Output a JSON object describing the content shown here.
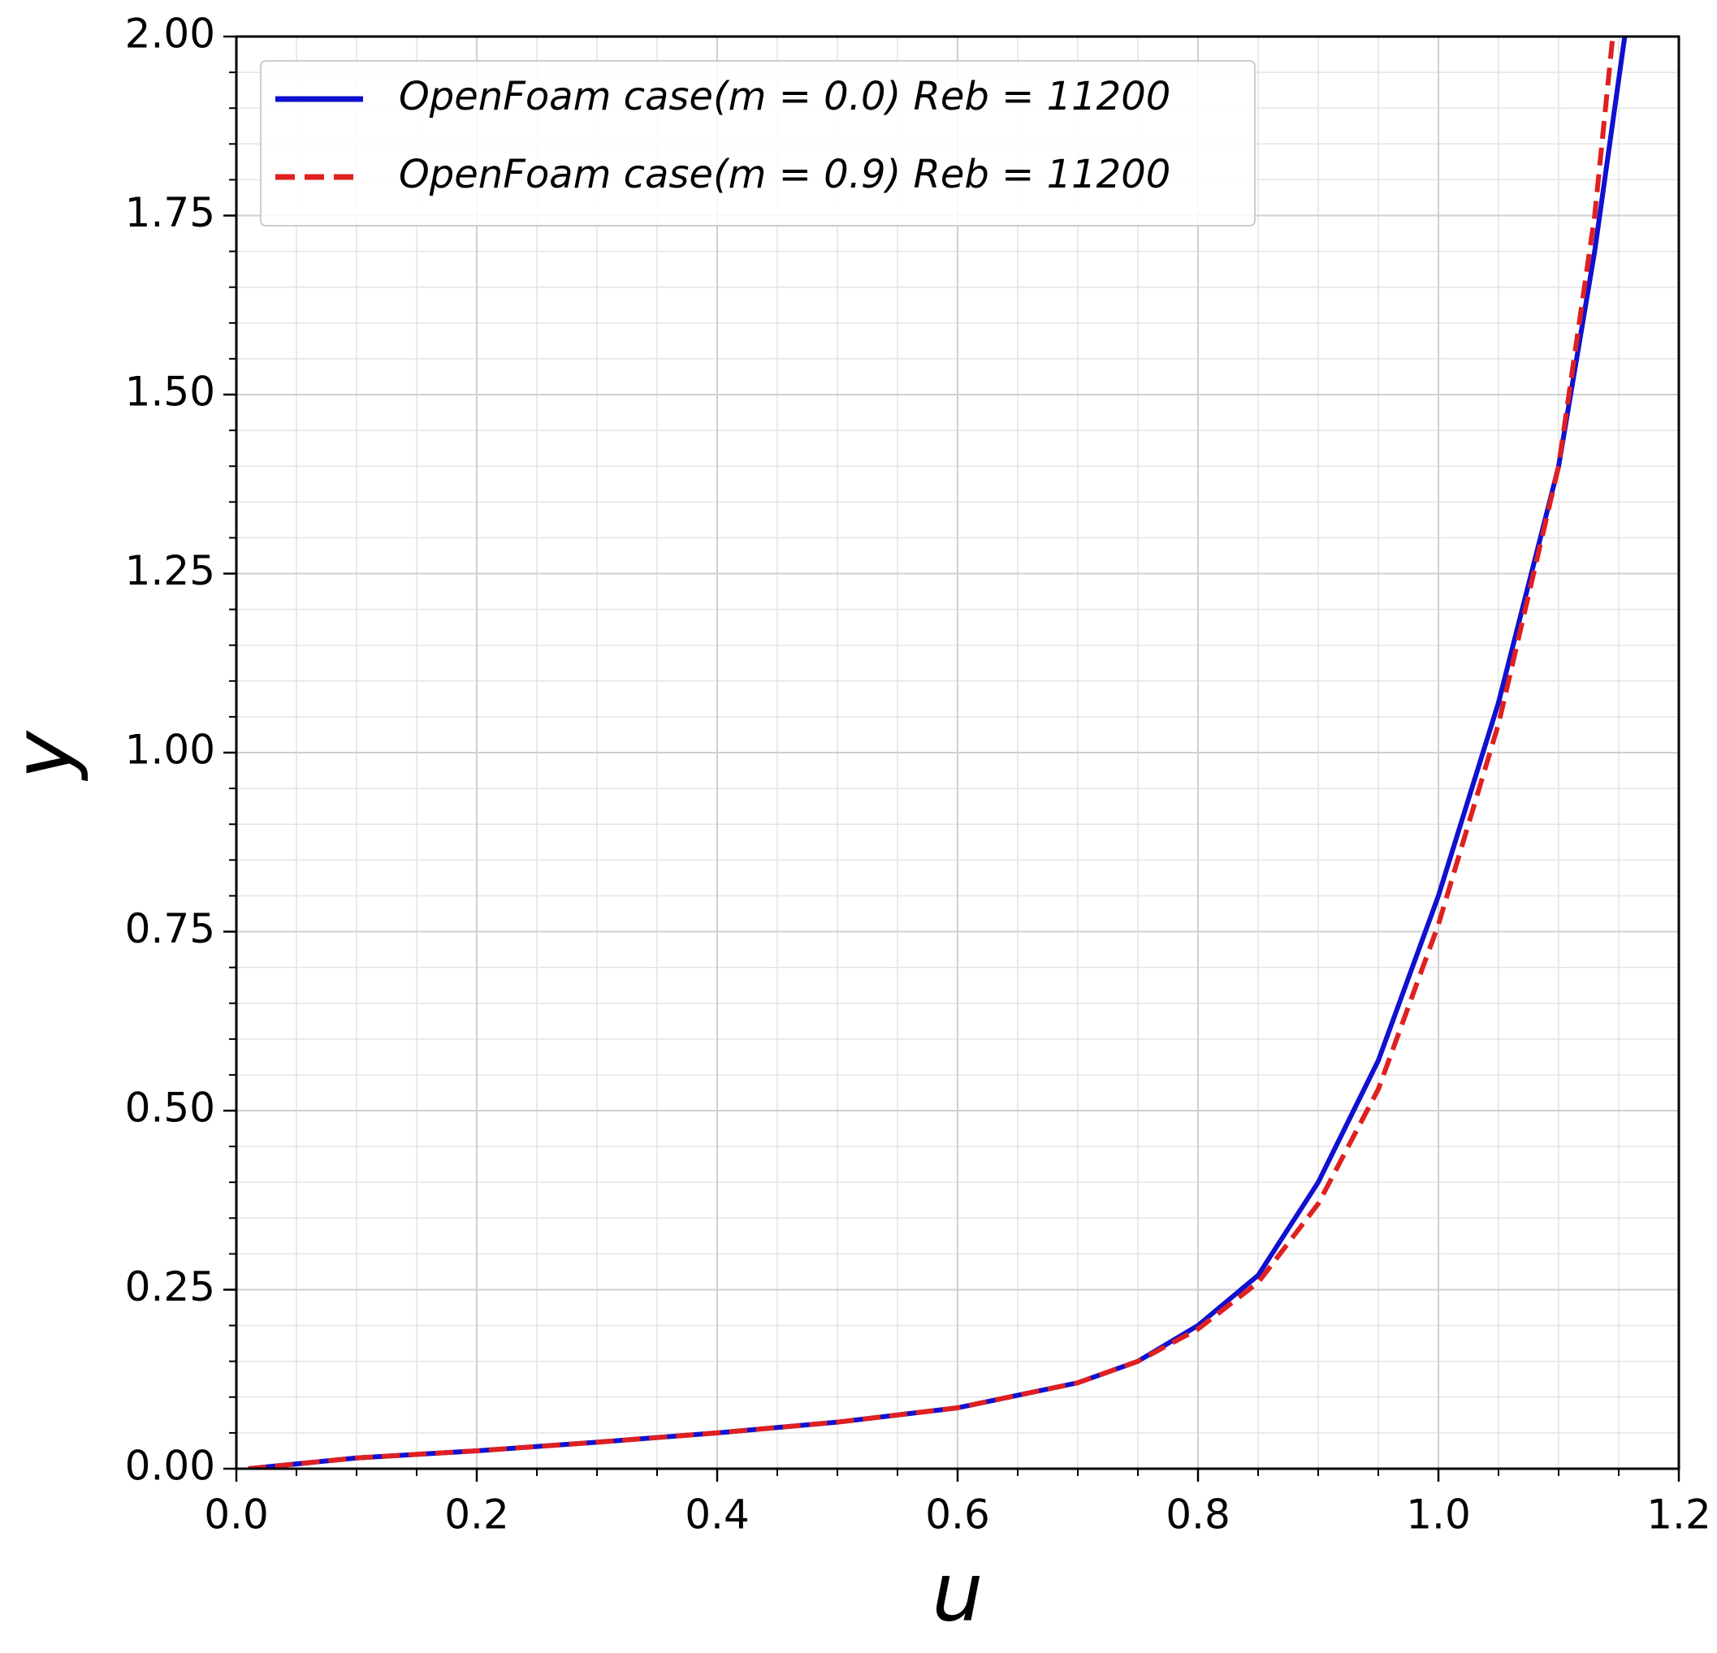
{
  "chart_data": {
    "type": "line",
    "xlabel": "u",
    "ylabel": "y",
    "xlim": [
      0,
      1.2
    ],
    "xticks": [
      {
        "value": 0,
        "label": "0.0"
      },
      0.2,
      0.4,
      0.6,
      0.8,
      {
        "value": 1,
        "label": "1.0"
      },
      1.2
    ],
    "ylim": [
      0,
      2
    ],
    "yticks": [
      {
        "value": 0,
        "label": "0.00"
      },
      0.25,
      {
        "value": 0.5,
        "label": "0.50"
      },
      0.75,
      {
        "value": 1,
        "label": "1.00"
      },
      1.25,
      {
        "value": 1.5,
        "label": "1.50"
      },
      1.75,
      {
        "value": 2,
        "label": "2.00"
      }
    ],
    "x_minor_divisions": 4,
    "y_minor_divisions": 5,
    "grid": true,
    "legend": "upper left",
    "series": [
      {
        "name": "OpenFoam case(m = 0.0)  Reb = 11200",
        "color": "#1010d0",
        "style": "solid",
        "x": [
          0.01,
          0.1,
          0.2,
          0.3,
          0.4,
          0.5,
          0.6,
          0.7,
          0.75,
          0.8,
          0.85,
          0.9,
          0.95,
          1.0,
          1.05,
          1.1,
          1.13,
          1.155
        ],
        "values": [
          0.0,
          0.015,
          0.025,
          0.037,
          0.05,
          0.065,
          0.085,
          0.12,
          0.15,
          0.2,
          0.27,
          0.4,
          0.57,
          0.8,
          1.07,
          1.4,
          1.7,
          2.0
        ]
      },
      {
        "name": "OpenFoam case(m = 0.9)  Reb = 11200",
        "color": "#e02020",
        "style": "dashed",
        "x": [
          0.01,
          0.1,
          0.2,
          0.3,
          0.4,
          0.5,
          0.6,
          0.7,
          0.75,
          0.8,
          0.85,
          0.9,
          0.95,
          1.0,
          1.05,
          1.1,
          1.13,
          1.145
        ],
        "values": [
          0.0,
          0.015,
          0.025,
          0.037,
          0.05,
          0.065,
          0.085,
          0.12,
          0.15,
          0.195,
          0.26,
          0.37,
          0.53,
          0.76,
          1.04,
          1.4,
          1.75,
          2.0
        ]
      }
    ]
  }
}
